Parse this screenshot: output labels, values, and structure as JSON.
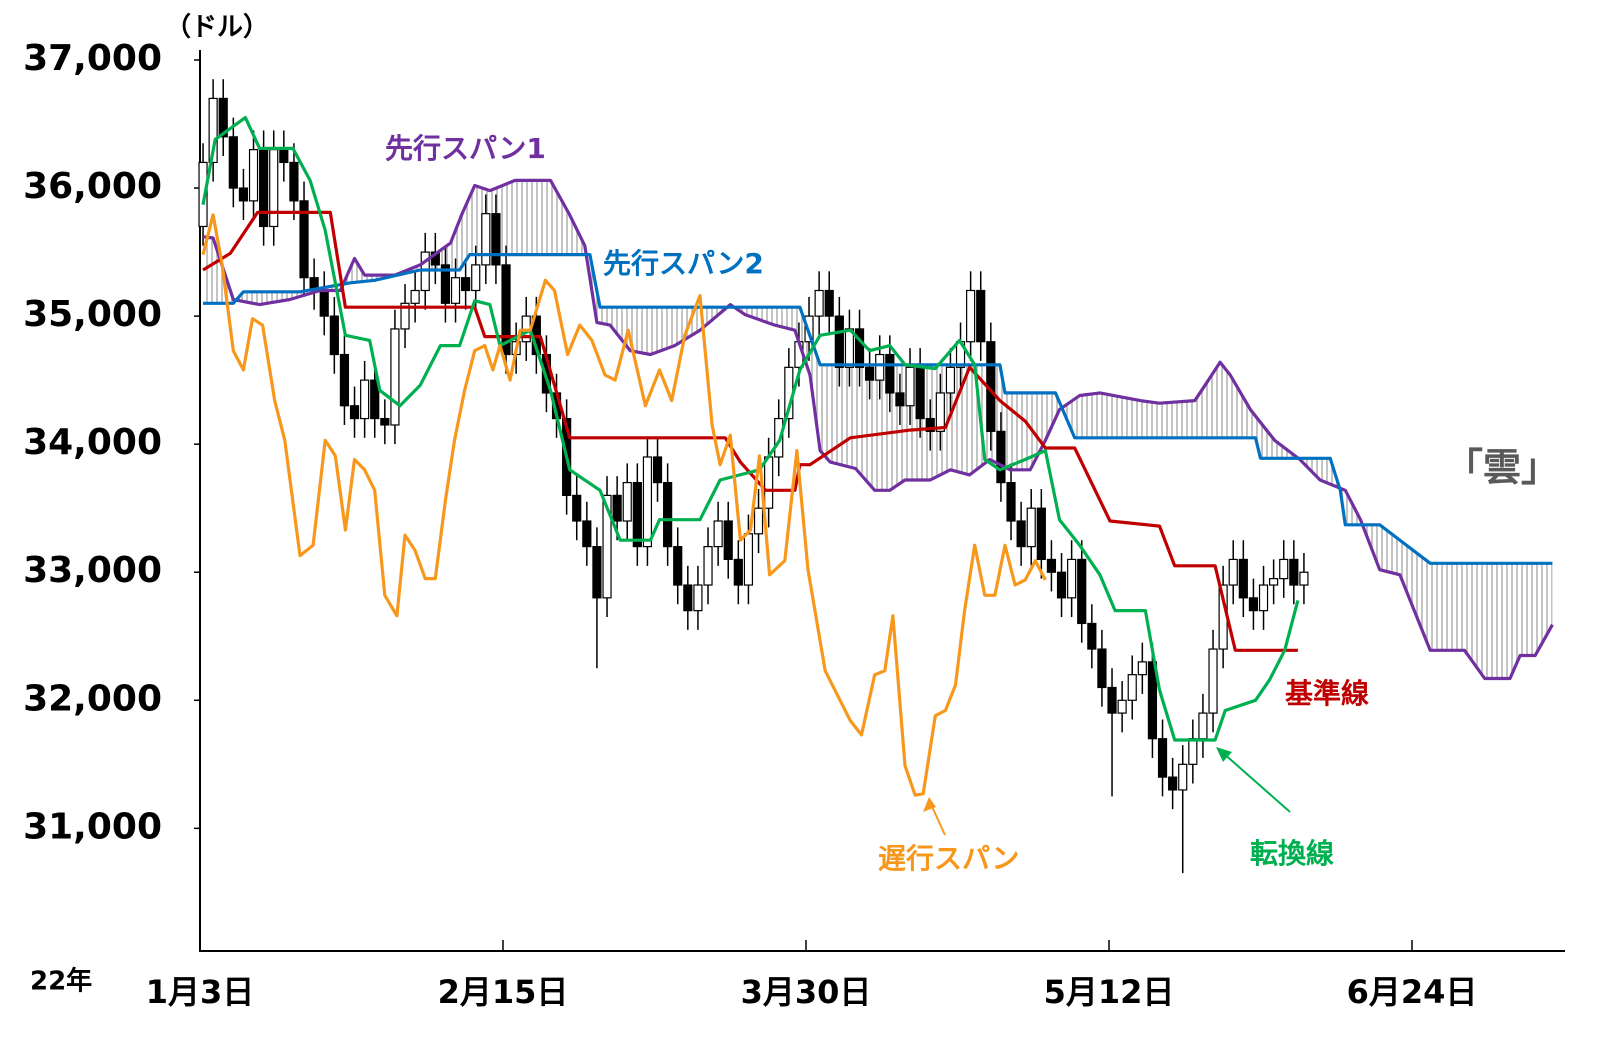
{
  "chart_data": {
    "type": "candlestick",
    "y_unit": "（ドル）",
    "year_label": "22年",
    "cloud_label": "「雲」",
    "xlim": [
      0,
      135
    ],
    "xticks": [
      {
        "value": 0,
        "label": "1月3日"
      },
      {
        "value": 30,
        "label": "2月15日"
      },
      {
        "value": 60,
        "label": "3月30日"
      },
      {
        "value": 90,
        "label": "5月12日"
      },
      {
        "value": 120,
        "label": "6月24日"
      }
    ],
    "ylim": [
      30050,
      37000
    ],
    "yticks": [
      {
        "value": 31000,
        "label": "31,000"
      },
      {
        "value": 32000,
        "label": "32,000"
      },
      {
        "value": 33000,
        "label": "33,000"
      },
      {
        "value": 34000,
        "label": "34,000"
      },
      {
        "value": 35000,
        "label": "35,000"
      },
      {
        "value": 36000,
        "label": "36,000"
      },
      {
        "value": 37000,
        "label": "37,000"
      }
    ],
    "ohlc": [
      [
        35700,
        36350,
        35550,
        36200
      ],
      [
        36200,
        36850,
        36050,
        36700
      ],
      [
        36700,
        36850,
        36250,
        36400
      ],
      [
        36400,
        36550,
        35850,
        36000
      ],
      [
        36000,
        36150,
        35750,
        35900
      ],
      [
        35900,
        36450,
        35750,
        36300
      ],
      [
        36300,
        36450,
        35550,
        35700
      ],
      [
        35700,
        36450,
        35550,
        36300
      ],
      [
        36300,
        36450,
        36050,
        36200
      ],
      [
        36200,
        36350,
        35750,
        35900
      ],
      [
        35900,
        36050,
        35150,
        35300
      ],
      [
        35300,
        35450,
        35050,
        35200
      ],
      [
        35200,
        35350,
        34850,
        35000
      ],
      [
        35000,
        35150,
        34550,
        34700
      ],
      [
        34700,
        34850,
        34150,
        34300
      ],
      [
        34300,
        34450,
        34050,
        34200
      ],
      [
        34200,
        34650,
        34050,
        34500
      ],
      [
        34500,
        34650,
        34050,
        34200
      ],
      [
        34200,
        34350,
        34000,
        34150
      ],
      [
        34150,
        35050,
        34000,
        34900
      ],
      [
        34900,
        35250,
        34750,
        35100
      ],
      [
        35100,
        35350,
        34950,
        35200
      ],
      [
        35200,
        35650,
        35050,
        35500
      ],
      [
        35500,
        35650,
        35250,
        35400
      ],
      [
        35400,
        35550,
        34950,
        35100
      ],
      [
        35100,
        35450,
        34950,
        35300
      ],
      [
        35300,
        35450,
        35050,
        35200
      ],
      [
        35200,
        35550,
        35050,
        35400
      ],
      [
        35400,
        35950,
        35250,
        35800
      ],
      [
        35800,
        35950,
        35250,
        35400
      ],
      [
        35400,
        35550,
        34550,
        34700
      ],
      [
        34700,
        34950,
        34550,
        34800
      ],
      [
        34800,
        35150,
        34650,
        35000
      ],
      [
        35000,
        35150,
        34550,
        34700
      ],
      [
        34700,
        34850,
        34250,
        34400
      ],
      [
        34400,
        34550,
        34050,
        34200
      ],
      [
        34200,
        34350,
        33450,
        33600
      ],
      [
        33600,
        33750,
        33250,
        33400
      ],
      [
        33400,
        33550,
        33050,
        33200
      ],
      [
        33200,
        33350,
        32250,
        32800
      ],
      [
        32800,
        33750,
        32650,
        33600
      ],
      [
        33600,
        33750,
        33250,
        33400
      ],
      [
        33400,
        33850,
        33250,
        33700
      ],
      [
        33700,
        33850,
        33050,
        33200
      ],
      [
        33200,
        34050,
        33050,
        33900
      ],
      [
        33900,
        34050,
        33550,
        33700
      ],
      [
        33700,
        33850,
        33050,
        33200
      ],
      [
        33200,
        33350,
        32750,
        32900
      ],
      [
        32900,
        33050,
        32550,
        32700
      ],
      [
        32700,
        33050,
        32550,
        32900
      ],
      [
        32900,
        33350,
        32750,
        33200
      ],
      [
        33200,
        33550,
        33050,
        33400
      ],
      [
        33400,
        33550,
        32950,
        33100
      ],
      [
        33100,
        33250,
        32750,
        32900
      ],
      [
        32900,
        33450,
        32750,
        33300
      ],
      [
        33300,
        33650,
        33150,
        33500
      ],
      [
        33500,
        34050,
        33350,
        33900
      ],
      [
        33900,
        34350,
        33750,
        34200
      ],
      [
        34200,
        34750,
        34050,
        34600
      ],
      [
        34600,
        34950,
        34450,
        34800
      ],
      [
        34800,
        35150,
        34650,
        35000
      ],
      [
        35000,
        35350,
        34850,
        35200
      ],
      [
        35200,
        35350,
        34850,
        35000
      ],
      [
        35000,
        35150,
        34450,
        34600
      ],
      [
        34600,
        35050,
        34450,
        34900
      ],
      [
        34900,
        35050,
        34450,
        34600
      ],
      [
        34600,
        34750,
        34350,
        34500
      ],
      [
        34500,
        34850,
        34350,
        34700
      ],
      [
        34700,
        34850,
        34250,
        34400
      ],
      [
        34400,
        34550,
        34150,
        34300
      ],
      [
        34300,
        34750,
        34150,
        34600
      ],
      [
        34600,
        34750,
        34050,
        34200
      ],
      [
        34200,
        34350,
        33950,
        34100
      ],
      [
        34100,
        34550,
        33950,
        34400
      ],
      [
        34400,
        34750,
        34250,
        34600
      ],
      [
        34600,
        34950,
        34450,
        34800
      ],
      [
        34800,
        35350,
        34650,
        35200
      ],
      [
        35200,
        35350,
        34650,
        34800
      ],
      [
        34800,
        34950,
        33950,
        34100
      ],
      [
        34100,
        34250,
        33550,
        33700
      ],
      [
        33700,
        33850,
        33250,
        33400
      ],
      [
        33400,
        33550,
        33050,
        33200
      ],
      [
        33200,
        33650,
        33050,
        33500
      ],
      [
        33500,
        33650,
        32950,
        33100
      ],
      [
        33100,
        33250,
        32850,
        33000
      ],
      [
        33000,
        33150,
        32650,
        32800
      ],
      [
        32800,
        33250,
        32650,
        33100
      ],
      [
        33100,
        33250,
        32450,
        32600
      ],
      [
        32600,
        32750,
        32250,
        32400
      ],
      [
        32400,
        32550,
        31950,
        32100
      ],
      [
        32100,
        32250,
        31250,
        31900
      ],
      [
        31900,
        32150,
        31750,
        32000
      ],
      [
        32000,
        32350,
        31850,
        32200
      ],
      [
        32200,
        32450,
        32050,
        32300
      ],
      [
        32300,
        32450,
        31550,
        31700
      ],
      [
        31700,
        31850,
        31250,
        31400
      ],
      [
        31400,
        31550,
        31150,
        31300
      ],
      [
        31300,
        31650,
        30650,
        31500
      ],
      [
        31500,
        31850,
        31350,
        31700
      ],
      [
        31700,
        32050,
        31550,
        31900
      ],
      [
        31900,
        32550,
        31750,
        32400
      ],
      [
        32400,
        33050,
        32250,
        32900
      ],
      [
        32900,
        33250,
        32750,
        33100
      ],
      [
        33100,
        33250,
        32650,
        32800
      ],
      [
        32800,
        32950,
        32550,
        32700
      ],
      [
        32700,
        33050,
        32550,
        32900
      ],
      [
        32900,
        33100,
        32750,
        32950
      ],
      [
        32950,
        33250,
        32800,
        33100
      ],
      [
        33100,
        33250,
        32750,
        32900
      ],
      [
        32900,
        33150,
        32750,
        33000
      ]
    ],
    "series": [
      {
        "name": "先行スパン1",
        "color": "#7030a0",
        "x": [
          0.3,
          1.3,
          3.3,
          5.9,
          8.9,
          11.9,
          13.9,
          15.3,
          16.3,
          19.3,
          21.8,
          24.8,
          25.9,
          27.2,
          28.7,
          31.2,
          34.7,
          36.6,
          38.1,
          39.3,
          40.6,
          42.6,
          44.6,
          47,
          49.5,
          50.7,
          52.5,
          54,
          56.9,
          58.9,
          60.4,
          61.4,
          62.4,
          64.9,
          66.8,
          68.3,
          69.8,
          72.3,
          74.3,
          76.2,
          78.2,
          80.2,
          82.2,
          83.7,
          85.1,
          87.1,
          89.1,
          93.1,
          95,
          98.5,
          99.5,
          101,
          102,
          104,
          106.4,
          108.9,
          110.9,
          113.4,
          114.9,
          116.8,
          118.8,
          121.8,
          125.2,
          127.2,
          129.7,
          130.7,
          132.2,
          133.9
        ],
        "values": [
          35620,
          35610,
          35130,
          35090,
          35130,
          35200,
          35200,
          35450,
          35320,
          35320,
          35400,
          35570,
          35790,
          36020,
          35980,
          36060,
          36060,
          35790,
          35550,
          34950,
          34930,
          34730,
          34700,
          34770,
          34890,
          34970,
          35090,
          35010,
          34930,
          34890,
          34540,
          33950,
          33860,
          33810,
          33640,
          33640,
          33720,
          33720,
          33800,
          33760,
          33880,
          33800,
          33800,
          34030,
          34270,
          34380,
          34400,
          34340,
          34320,
          34340,
          34460,
          34640,
          34540,
          34270,
          34030,
          33880,
          33720,
          33640,
          33410,
          33020,
          32980,
          32390,
          32390,
          32170,
          32170,
          32350,
          32350,
          32590
        ]
      },
      {
        "name": "先行スパン2",
        "color": "#0070c0",
        "x": [
          0.3,
          3.3,
          4.3,
          9.9,
          14.9,
          17.3,
          21.8,
          25.7,
          26.7,
          38.6,
          39.6,
          59.4,
          61.4,
          79.2,
          79.7,
          84.7,
          86.6,
          104.5,
          105,
          111.9,
          112.9,
          113.4,
          116.8,
          121.8,
          133.9
        ],
        "values": [
          35100,
          35100,
          35190,
          35190,
          35260,
          35280,
          35360,
          35360,
          35480,
          35480,
          35070,
          35070,
          34620,
          34620,
          34400,
          34400,
          34050,
          34050,
          33890,
          33890,
          33640,
          33370,
          33370,
          33070,
          33070
        ]
      },
      {
        "name": "基準線",
        "color": "#c00000",
        "x": [
          0.3,
          3,
          5.7,
          12.9,
          14.4,
          27.2,
          28.2,
          33.7,
          36.6,
          52,
          53.5,
          56,
          58.9,
          59.4,
          60.4,
          64.4,
          70.3,
          73.8,
          76.2,
          79.2,
          81.7,
          83.7,
          86.6,
          90.1,
          95,
          96.5,
          100.5,
          102.5,
          108.7
        ],
        "values": [
          35360,
          35490,
          35810,
          35810,
          35070,
          35070,
          34840,
          34840,
          34050,
          34050,
          33860,
          33640,
          33640,
          33840,
          33840,
          34050,
          34110,
          34130,
          34600,
          34340,
          34180,
          33970,
          33970,
          33400,
          33360,
          33050,
          33050,
          32390,
          32390
        ]
      },
      {
        "name": "転換線",
        "color": "#00b050",
        "x": [
          0.3,
          1.5,
          4.5,
          5.9,
          9.2,
          10.9,
          12.4,
          14.4,
          16.8,
          17.8,
          19.8,
          21.8,
          23.8,
          25.7,
          27.2,
          28.7,
          29.7,
          32.7,
          34.7,
          36.6,
          39.6,
          41.6,
          44.6,
          45.5,
          49.5,
          51.5,
          55.4,
          57.4,
          59.4,
          61.4,
          64.4,
          66.3,
          68.3,
          69.8,
          72.8,
          75.2,
          76.7,
          77.7,
          79.2,
          81.7,
          83.7,
          85.1,
          87.1,
          89.1,
          90.6,
          93.6,
          95,
          96.5,
          100.5,
          101.5,
          104.5,
          105.9,
          107.4,
          108.7
        ],
        "values": [
          35870,
          36380,
          36550,
          36310,
          36310,
          36060,
          35670,
          34850,
          34810,
          34420,
          34300,
          34460,
          34770,
          34770,
          35120,
          35090,
          34770,
          34890,
          34420,
          33800,
          33640,
          33250,
          33250,
          33410,
          33410,
          33720,
          33800,
          34030,
          34580,
          34850,
          34890,
          34730,
          34770,
          34620,
          34590,
          34810,
          34620,
          33880,
          33800,
          33880,
          33950,
          33410,
          33210,
          32980,
          32700,
          32700,
          32080,
          31690,
          31690,
          31920,
          32000,
          32160,
          32390,
          32780
        ]
      },
      {
        "name": "遅行スパン",
        "color": "#f7981d",
        "x": [
          0.3,
          1.3,
          2.2,
          3.3,
          4.3,
          5.2,
          6.2,
          7.4,
          8.4,
          9.9,
          11.2,
          12.4,
          13.4,
          14.4,
          15.3,
          16.3,
          17.3,
          18.3,
          19.5,
          20.3,
          21.3,
          22.3,
          23.3,
          24.3,
          25.2,
          26.2,
          27.2,
          28.2,
          29,
          29.7,
          30.7,
          31.7,
          32.7,
          34.2,
          35.1,
          36.4,
          37.6,
          38.8,
          40.1,
          41.1,
          42.4,
          44.1,
          45.5,
          46.7,
          48,
          49.5,
          50.7,
          51.5,
          52.5,
          53.5,
          54.5,
          55.4,
          56.4,
          57.9,
          59.1,
          60.2,
          61.9,
          64.4,
          65.5,
          66.8,
          67.8,
          68.6,
          69.8,
          70.8,
          71.6,
          72.8,
          73.8,
          74.8,
          75.7,
          76.7,
          77.7,
          78.7,
          79.7,
          80.7,
          81.7,
          82.7,
          83.7
        ],
        "values": [
          35480,
          35790,
          35400,
          34730,
          34580,
          34980,
          34930,
          34340,
          34030,
          33130,
          33210,
          34030,
          33910,
          33330,
          33880,
          33800,
          33640,
          32820,
          32660,
          33290,
          33170,
          32950,
          32950,
          33560,
          34030,
          34420,
          34730,
          34770,
          34580,
          34770,
          34500,
          34890,
          34890,
          35280,
          35200,
          34700,
          34930,
          34810,
          34540,
          34500,
          34890,
          34300,
          34580,
          34340,
          34850,
          35160,
          34150,
          33840,
          34070,
          33250,
          33330,
          33910,
          32980,
          33090,
          33950,
          33020,
          32230,
          31840,
          31730,
          32200,
          32230,
          32660,
          31490,
          31260,
          31270,
          31880,
          31920,
          32120,
          32700,
          33210,
          32820,
          32820,
          33210,
          32900,
          32940,
          33090,
          32940
        ]
      }
    ]
  }
}
